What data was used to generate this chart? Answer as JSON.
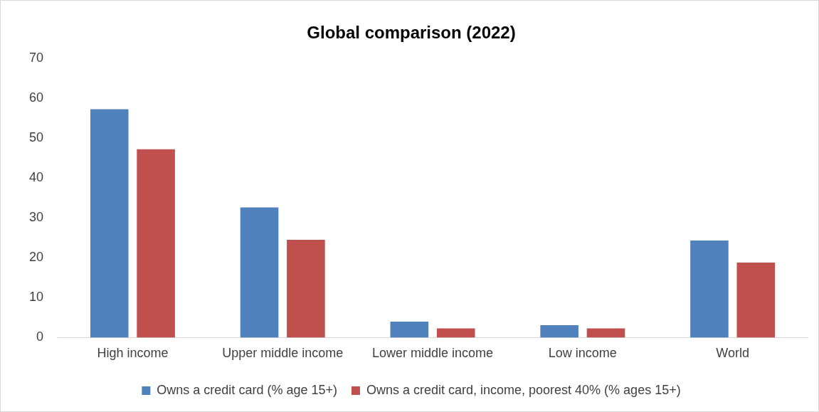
{
  "chart_data": {
    "type": "bar",
    "title": "Global comparison (2022)",
    "categories": [
      "High income",
      "Upper middle income",
      "Lower middle income",
      "Low income",
      "World"
    ],
    "series": [
      {
        "name": "Owns a credit card (% age 15+)",
        "color": "#4f81bd",
        "values": [
          57.2,
          32.6,
          4.0,
          3.1,
          24.3
        ]
      },
      {
        "name": "Owns a credit card, income, poorest 40% (% ages 15+)",
        "color": "#c0504d",
        "values": [
          47.2,
          24.5,
          2.3,
          2.3,
          18.8
        ]
      }
    ],
    "ylim": [
      0,
      70
    ],
    "yticks": [
      0,
      10,
      20,
      30,
      40,
      50,
      60,
      70
    ],
    "grid": false,
    "legend": "bottom"
  }
}
